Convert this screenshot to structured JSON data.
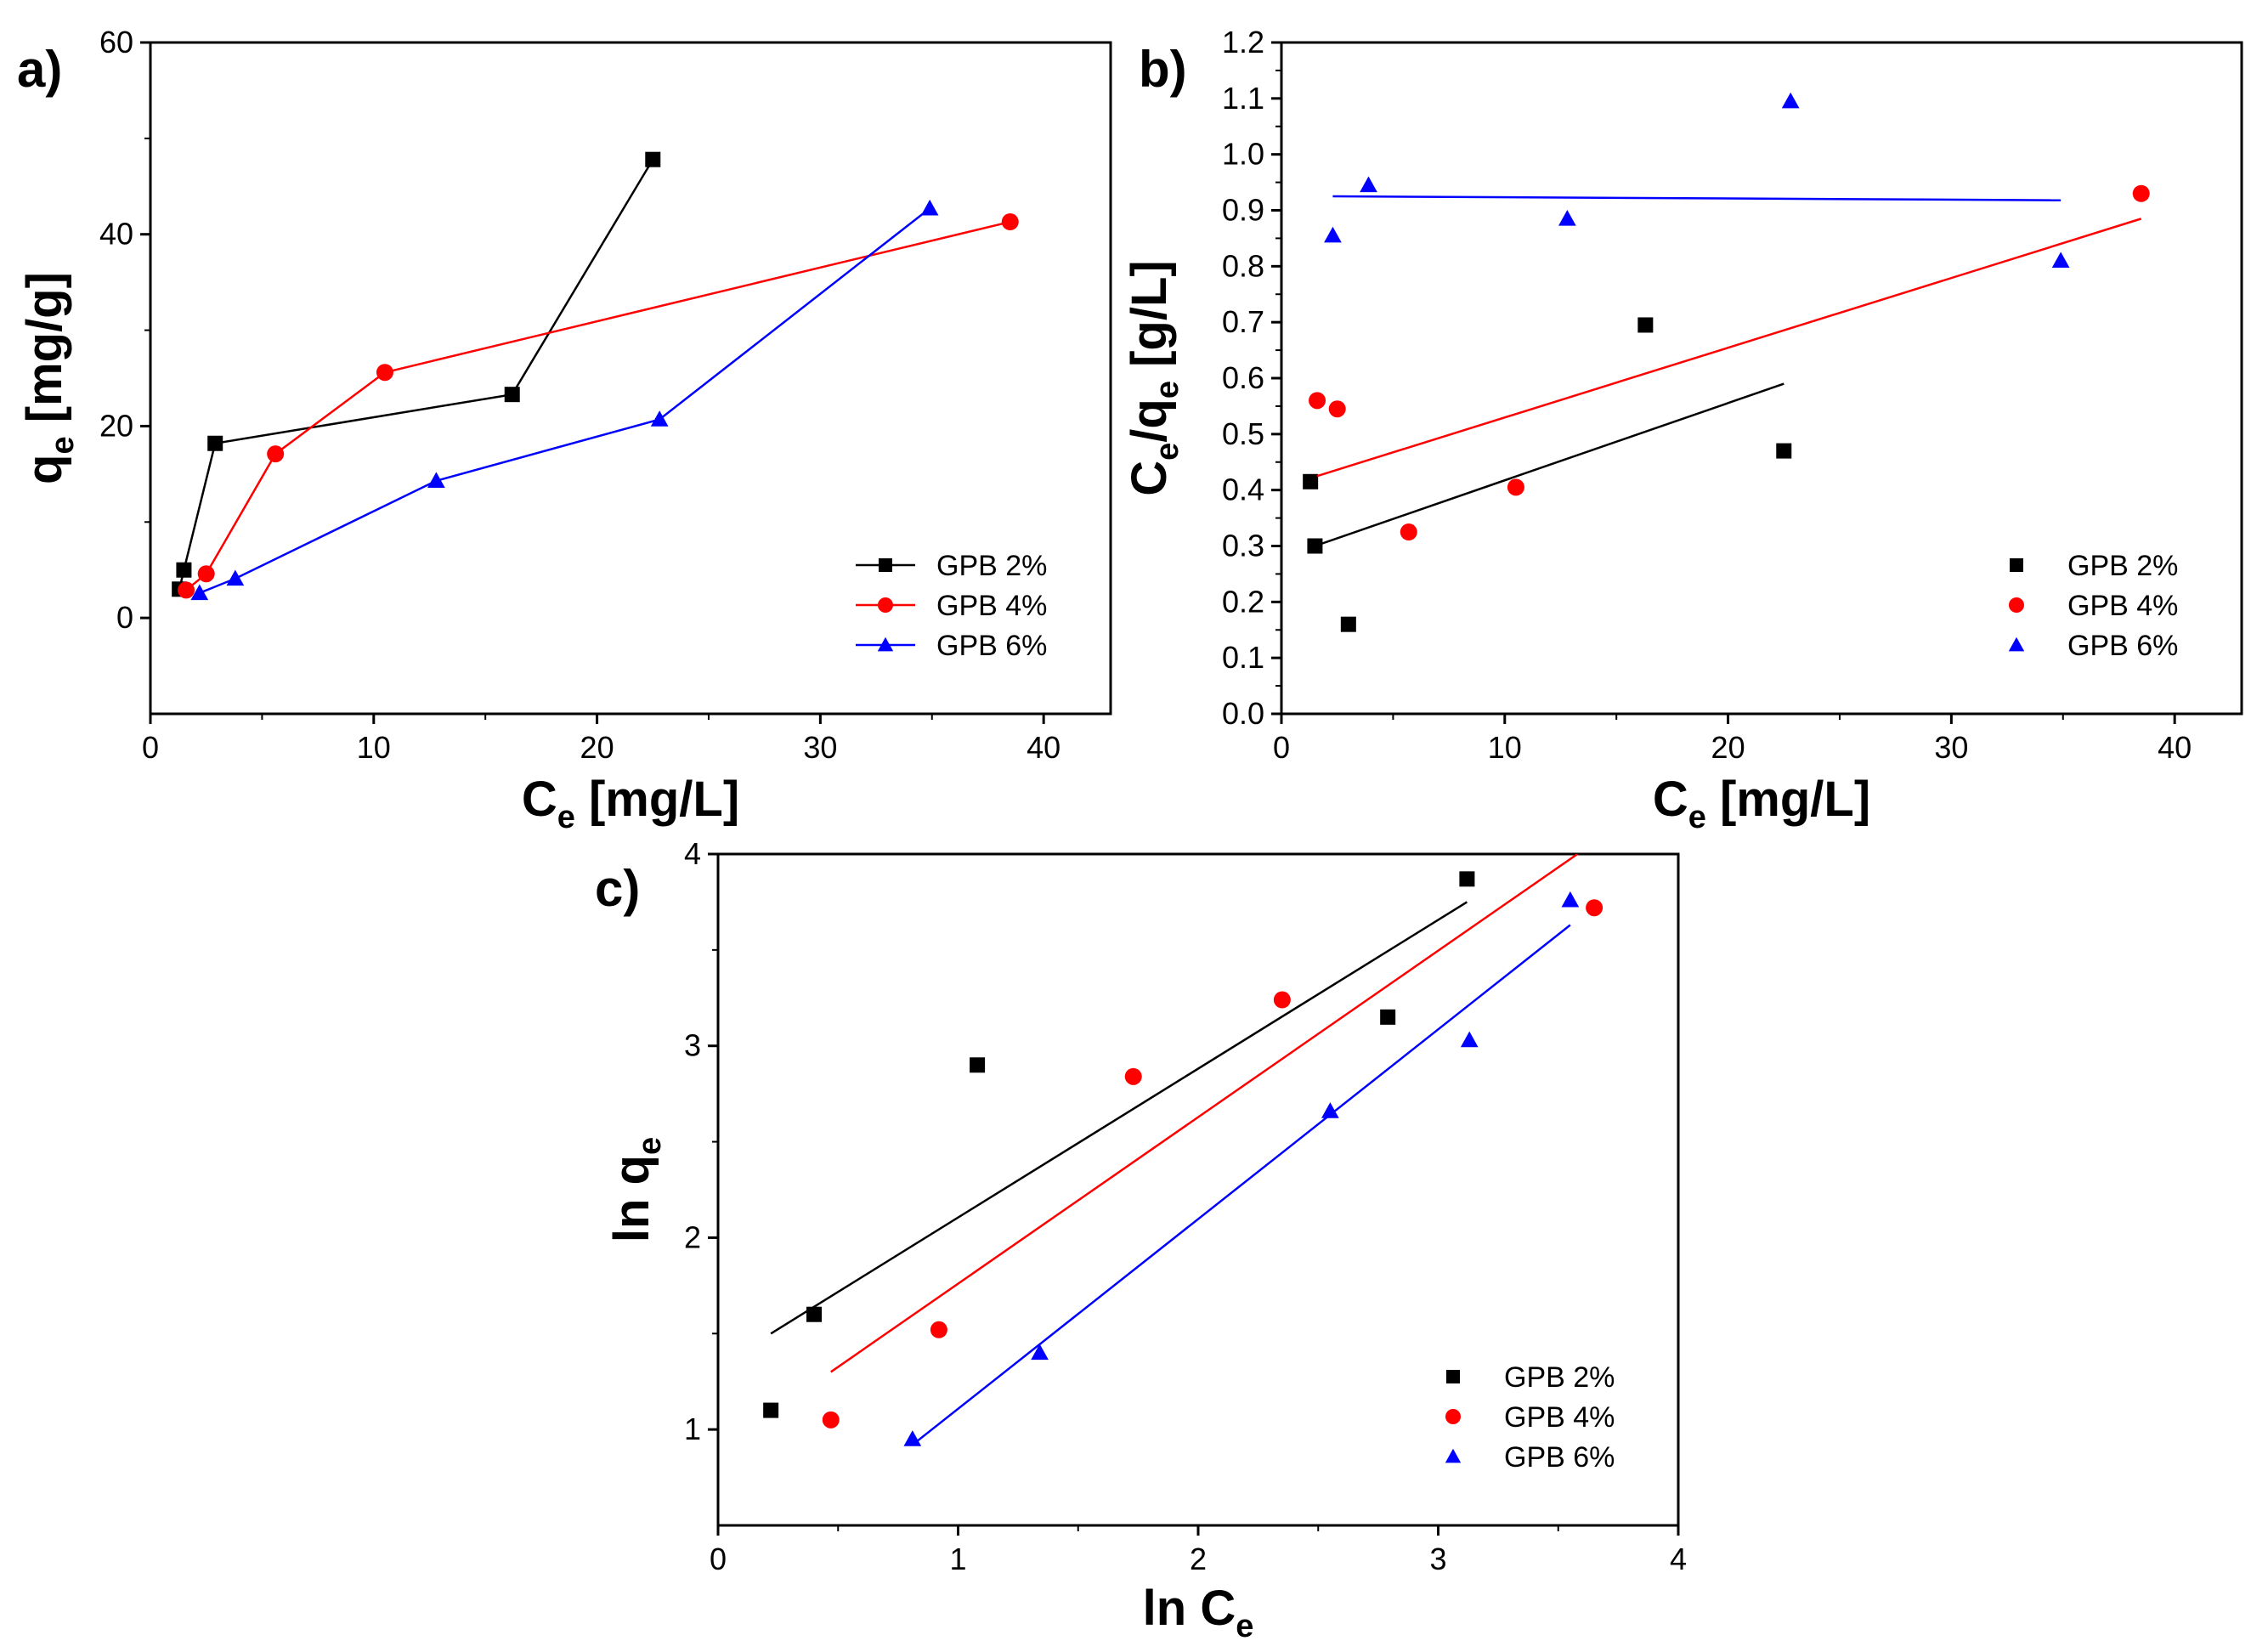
{
  "chart_data": [
    {
      "panel_label": "a)",
      "type": "line",
      "xlabel": "C",
      "xlabel_sub": "e",
      "xlabel_unit": " [mg/L]",
      "ylabel": "q",
      "ylabel_sub": "e",
      "ylabel_unit": " [mg/g]",
      "xlim": [
        0,
        43
      ],
      "ylim": [
        -10,
        60
      ],
      "xticks": [
        0,
        10,
        20,
        30,
        40
      ],
      "yticks": [
        0,
        20,
        40,
        60
      ],
      "legend_position": "bottom-right",
      "legend_style": "line-marker",
      "series": [
        {
          "name": "GPB 2%",
          "color": "#000000",
          "marker": "square",
          "mode": "line+marker",
          "x": [
            1.3,
            1.5,
            2.9,
            16.2,
            22.5
          ],
          "y": [
            3,
            5,
            18.2,
            23.3,
            47.8
          ]
        },
        {
          "name": "GPB 4%",
          "color": "#ff0000",
          "marker": "circle",
          "mode": "line+marker",
          "x": [
            1.6,
            2.5,
            5.6,
            10.5,
            38.5
          ],
          "y": [
            2.9,
            4.6,
            17.1,
            25.6,
            41.3
          ]
        },
        {
          "name": "GPB 6%",
          "color": "#0000ff",
          "marker": "triangle",
          "mode": "line+marker",
          "x": [
            2.2,
            3.8,
            12.8,
            22.8,
            34.9
          ],
          "y": [
            2.6,
            4.1,
            14.3,
            20.7,
            42.7
          ]
        }
      ]
    },
    {
      "panel_label": "b)",
      "type": "scatter",
      "xlabel": "C",
      "xlabel_sub": "e",
      "xlabel_unit": " [mg/L]",
      "ylabel": "C",
      "ylabel_sub": "e",
      "ylabel_mid": "/q",
      "ylabel_sub2": "e",
      "ylabel_unit": " [g/L]",
      "xlim": [
        0,
        43
      ],
      "ylim": [
        0,
        1.2
      ],
      "xticks": [
        0,
        10,
        20,
        30,
        40
      ],
      "yticks": [
        "0.0",
        "0.1",
        "0.2",
        "0.3",
        "0.4",
        "0.5",
        "0.6",
        "0.7",
        "0.8",
        "0.9",
        "1.0",
        "1.1",
        "1.2"
      ],
      "legend_position": "bottom-right",
      "legend_style": "marker",
      "series": [
        {
          "name": "GPB 2%",
          "color": "#000000",
          "marker": "square",
          "x": [
            1.3,
            1.5,
            3.0,
            16.3,
            22.5
          ],
          "y": [
            0.415,
            0.3,
            0.16,
            0.695,
            0.47
          ],
          "fit": {
            "x": [
              1.5,
              22.5
            ],
            "y": [
              0.3,
              0.59
            ]
          }
        },
        {
          "name": "GPB 4%",
          "color": "#ff0000",
          "marker": "circle",
          "x": [
            1.6,
            2.5,
            5.7,
            10.5,
            38.5
          ],
          "y": [
            0.56,
            0.545,
            0.325,
            0.405,
            0.93
          ],
          "fit": {
            "x": [
              1.6,
              38.5
            ],
            "y": [
              0.425,
              0.885
            ]
          }
        },
        {
          "name": "GPB 6%",
          "color": "#0000ff",
          "marker": "triangle",
          "x": [
            2.3,
            3.9,
            12.8,
            22.8,
            34.9
          ],
          "y": [
            0.855,
            0.945,
            0.885,
            1.095,
            0.81
          ],
          "fit": {
            "x": [
              2.3,
              34.9
            ],
            "y": [
              0.925,
              0.918
            ]
          }
        }
      ]
    },
    {
      "panel_label": "c)",
      "type": "scatter",
      "xlabel": "ln C",
      "xlabel_sub": "e",
      "xlabel_unit": "",
      "ylabel": "ln q",
      "ylabel_sub": "e",
      "ylabel_unit": "",
      "xlim": [
        0,
        4
      ],
      "ylim": [
        0.5,
        4
      ],
      "xticks": [
        0,
        1,
        2,
        3,
        4
      ],
      "yticks": [
        1,
        2,
        3,
        4
      ],
      "legend_position": "bottom-right",
      "legend_style": "marker",
      "series": [
        {
          "name": "GPB 2%",
          "color": "#000000",
          "marker": "square",
          "x": [
            0.22,
            0.4,
            1.08,
            2.79,
            3.12
          ],
          "y": [
            1.1,
            1.6,
            2.9,
            3.15,
            3.87
          ],
          "fit": {
            "x": [
              0.22,
              3.12
            ],
            "y": [
              1.5,
              3.75
            ]
          }
        },
        {
          "name": "GPB 4%",
          "color": "#ff0000",
          "marker": "circle",
          "x": [
            0.47,
            0.92,
            1.73,
            2.35,
            3.65
          ],
          "y": [
            1.05,
            1.52,
            2.84,
            3.24,
            3.72
          ],
          "fit": {
            "x": [
              0.47,
              3.58
            ],
            "y": [
              1.3,
              4.0
            ]
          }
        },
        {
          "name": "GPB 6%",
          "color": "#0000ff",
          "marker": "triangle",
          "x": [
            0.81,
            1.34,
            2.55,
            3.13,
            3.55
          ],
          "y": [
            0.95,
            1.4,
            2.66,
            3.03,
            3.76
          ],
          "fit": {
            "x": [
              0.81,
              3.55
            ],
            "y": [
              0.92,
              3.63
            ]
          }
        }
      ]
    }
  ]
}
